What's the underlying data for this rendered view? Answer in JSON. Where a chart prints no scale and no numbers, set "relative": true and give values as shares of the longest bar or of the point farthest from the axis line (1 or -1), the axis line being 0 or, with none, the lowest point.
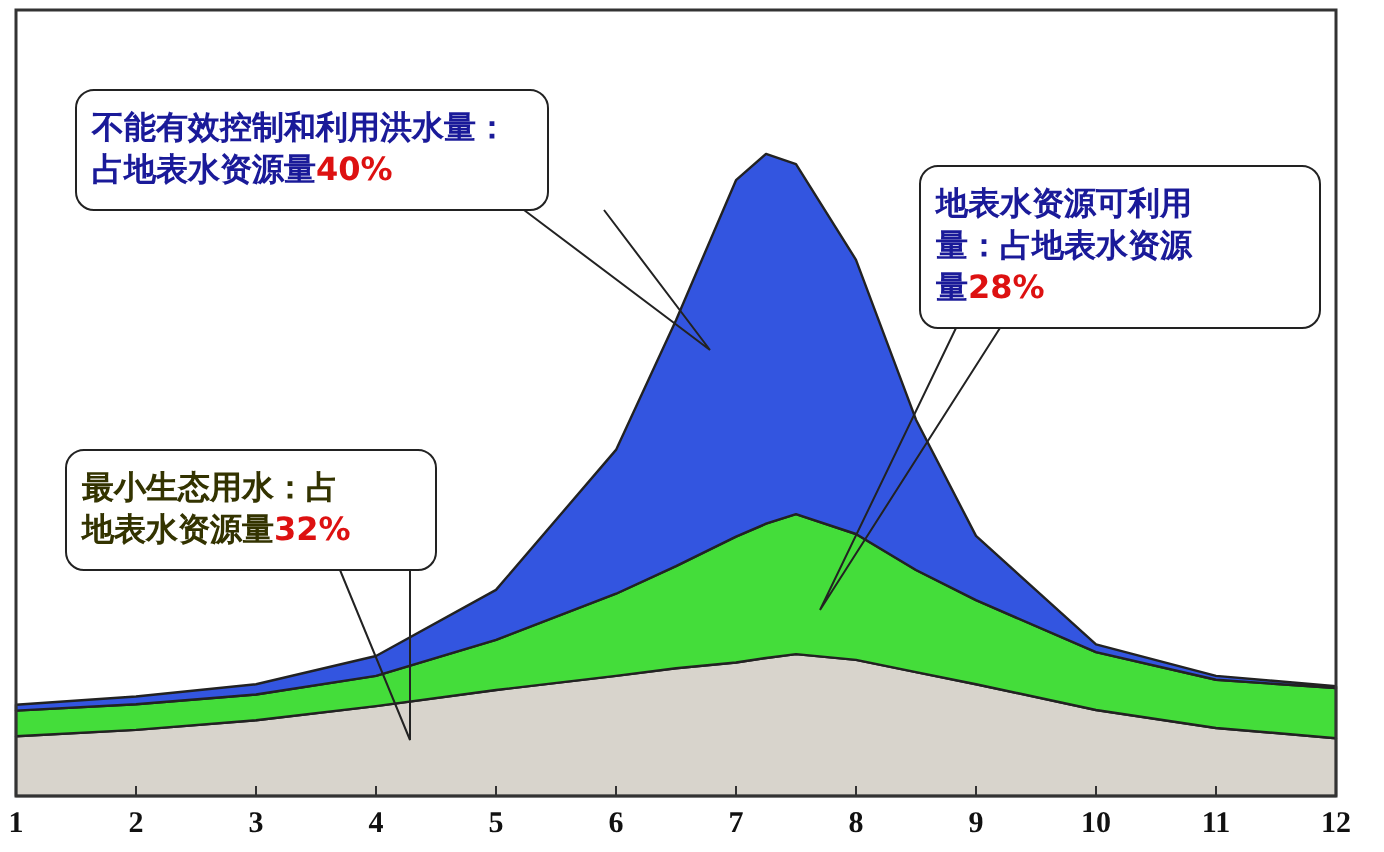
{
  "chart_data": {
    "type": "area",
    "stacked": true,
    "relative": true,
    "x": [
      1,
      2,
      3,
      4,
      5,
      6,
      6.5,
      7,
      7.25,
      7.5,
      8,
      8.5,
      9,
      10,
      11,
      12
    ],
    "xlim": [
      1,
      12
    ],
    "xticks": [
      1,
      2,
      3,
      4,
      5,
      6,
      7,
      8,
      9,
      10,
      11,
      12
    ],
    "series": [
      {
        "color": "#d8d4cc",
        "values": [
          0.093,
          0.103,
          0.118,
          0.14,
          0.165,
          0.187,
          0.199,
          0.208,
          0.215,
          0.221,
          0.212,
          0.193,
          0.174,
          0.134,
          0.106,
          0.09
        ]
      },
      {
        "color": "#44dd3a",
        "values": [
          0.04,
          0.04,
          0.04,
          0.047,
          0.078,
          0.128,
          0.159,
          0.196,
          0.209,
          0.218,
          0.196,
          0.159,
          0.131,
          0.09,
          0.075,
          0.078
        ]
      },
      {
        "color": "#3355e0",
        "values": [
          0.009,
          0.012,
          0.016,
          0.031,
          0.078,
          0.224,
          0.383,
          0.555,
          0.576,
          0.545,
          0.427,
          0.234,
          0.1,
          0.012,
          0.006,
          0.003
        ]
      }
    ],
    "annotations": [
      "不能有效控制和利用洪水量：占地表水资源量40%",
      "地表水资源可利用量：占地表水资源量28%",
      "最小生态用水：占地表水资源量32%"
    ],
    "grid": false
  }
}
